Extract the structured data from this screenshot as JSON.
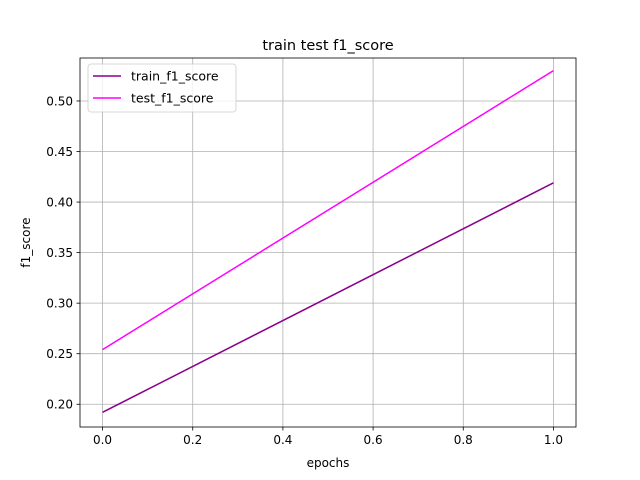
{
  "chart_data": {
    "type": "line",
    "title": "train test f1_score",
    "xlabel": "epochs",
    "ylabel": "f1_score",
    "x": [
      0.0,
      1.0
    ],
    "xlim": [
      -0.05,
      1.05
    ],
    "ylim": [
      0.1775,
      0.5425
    ],
    "xticks": [
      0.0,
      0.2,
      0.4,
      0.6,
      0.8,
      1.0
    ],
    "xtick_labels": [
      "0.0",
      "0.2",
      "0.4",
      "0.6",
      "0.8",
      "1.0"
    ],
    "yticks": [
      0.2,
      0.25,
      0.3,
      0.35,
      0.4,
      0.45,
      0.5
    ],
    "ytick_labels": [
      "0.20",
      "0.25",
      "0.30",
      "0.35",
      "0.40",
      "0.45",
      "0.50"
    ],
    "grid": true,
    "legend_position": "top-left",
    "series": [
      {
        "name": "train_f1_score",
        "color": "#8b008b",
        "values": [
          0.192,
          0.419
        ]
      },
      {
        "name": "test_f1_score",
        "color": "#ff00ff",
        "values": [
          0.254,
          0.53
        ]
      }
    ]
  }
}
